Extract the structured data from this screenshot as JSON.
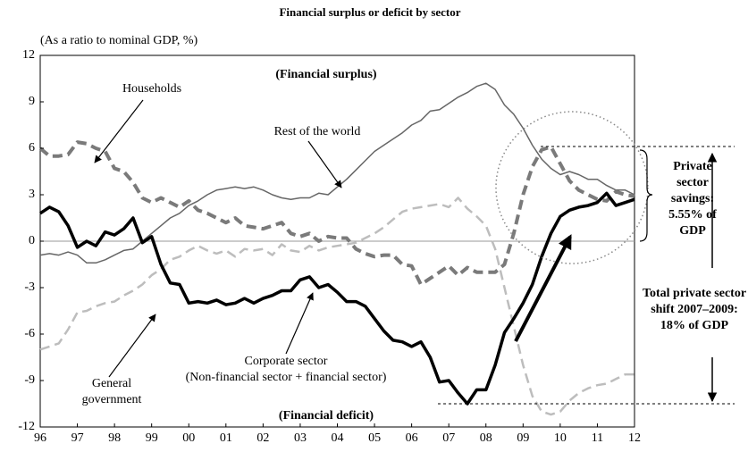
{
  "chart_data": {
    "type": "line",
    "title": "Financial surplus or deficit by sector",
    "y_axis_label": "(As a ratio to nominal GDP, %)",
    "annotations": {
      "surplus": "(Financial surplus)",
      "deficit": "(Financial deficit)",
      "corporate_detail": "(Non-financial sector + financial sector)",
      "savings": "Private sector savings: 5.55% of GDP",
      "shift": "Total private sector shift 2007–2009: 18% of GDP"
    },
    "x": [
      1996,
      1996.25,
      1996.5,
      1996.75,
      1997,
      1997.25,
      1997.5,
      1997.75,
      1998,
      1998.25,
      1998.5,
      1998.75,
      1999,
      1999.25,
      1999.5,
      1999.75,
      2000,
      2000.25,
      2000.5,
      2000.75,
      2001,
      2001.25,
      2001.5,
      2001.75,
      2002,
      2002.25,
      2002.5,
      2002.75,
      2003,
      2003.25,
      2003.5,
      2003.75,
      2004,
      2004.25,
      2004.5,
      2004.75,
      2005,
      2005.25,
      2005.5,
      2005.75,
      2006,
      2006.25,
      2006.5,
      2006.75,
      2007,
      2007.25,
      2007.5,
      2007.75,
      2008,
      2008.25,
      2008.5,
      2008.75,
      2009,
      2009.25,
      2009.5,
      2009.75,
      2010,
      2010.25,
      2010.5,
      2010.75,
      2011,
      2011.25,
      2011.5,
      2011.75,
      2012
    ],
    "xlim": [
      1996,
      2012
    ],
    "xticks": [
      {
        "value": 1996,
        "label": "96"
      },
      {
        "value": 1997,
        "label": "97"
      },
      {
        "value": 1998,
        "label": "98"
      },
      {
        "value": 1999,
        "label": "99"
      },
      {
        "value": 2000,
        "label": "00"
      },
      {
        "value": 2001,
        "label": "01"
      },
      {
        "value": 2002,
        "label": "02"
      },
      {
        "value": 2003,
        "label": "03"
      },
      {
        "value": 2004,
        "label": "04"
      },
      {
        "value": 2005,
        "label": "05"
      },
      {
        "value": 2006,
        "label": "06"
      },
      {
        "value": 2007,
        "label": "07"
      },
      {
        "value": 2008,
        "label": "08"
      },
      {
        "value": 2009,
        "label": "09"
      },
      {
        "value": 2010,
        "label": "10"
      },
      {
        "value": 2011,
        "label": "11"
      },
      {
        "value": 2012,
        "label": "12"
      }
    ],
    "ylim": [
      -12,
      12
    ],
    "yticks": [
      -12,
      -9,
      -6,
      -3,
      0,
      3,
      6,
      9,
      12
    ],
    "series": [
      {
        "name": "Households",
        "color": "#7a7a7a",
        "style": "dashed",
        "width": 4,
        "values": [
          6,
          5.5,
          5.5,
          5.6,
          6.4,
          6.3,
          6,
          5.8,
          4.7,
          4.5,
          3.8,
          2.8,
          2.5,
          2.8,
          2.5,
          2.2,
          2.6,
          2,
          1.8,
          1.5,
          1.2,
          1.5,
          1,
          0.9,
          0.8,
          1,
          1.2,
          0.5,
          0.3,
          0.5,
          0,
          0.3,
          0.2,
          0.2,
          -0.5,
          -0.8,
          -1,
          -0.9,
          -0.9,
          -1.5,
          -1.6,
          -2.8,
          -2.4,
          -2,
          -1.6,
          -2.2,
          -1.7,
          -2,
          -2,
          -2,
          -1.5,
          0.5,
          3,
          4.8,
          5.9,
          6.1,
          5,
          3.9,
          3.3,
          3,
          2.7,
          2.6,
          3.2,
          3,
          2.9
        ]
      },
      {
        "name": "Rest of the world",
        "color": "#666666",
        "style": "solid",
        "width": 1.5,
        "values": [
          -0.9,
          -0.8,
          -0.9,
          -0.7,
          -0.9,
          -1.4,
          -1.4,
          -1.2,
          -0.9,
          -0.6,
          -0.5,
          0,
          0.5,
          1,
          1.5,
          1.8,
          2.3,
          2.6,
          3,
          3.3,
          3.4,
          3.5,
          3.4,
          3.5,
          3.3,
          3,
          2.8,
          2.7,
          2.8,
          2.8,
          3.1,
          3,
          3.5,
          4,
          4.6,
          5.2,
          5.8,
          6.2,
          6.6,
          7,
          7.5,
          7.8,
          8.4,
          8.5,
          8.9,
          9.3,
          9.6,
          10,
          10.2,
          9.8,
          8.8,
          8.2,
          7.3,
          6.2,
          5.3,
          4.7,
          4.3,
          4.5,
          4.3,
          4,
          4,
          3.6,
          3.3,
          3.3,
          3
        ]
      },
      {
        "name": "General government",
        "color": "#bdbdbd",
        "style": "dashed",
        "width": 2.5,
        "values": [
          -7,
          -6.8,
          -6.6,
          -5.7,
          -4.6,
          -4.5,
          -4.2,
          -4,
          -3.9,
          -3.5,
          -3.2,
          -2.8,
          -2.2,
          -1.8,
          -1.2,
          -1,
          -0.6,
          -0.3,
          -0.6,
          -0.8,
          -0.6,
          -1,
          -0.5,
          -0.6,
          -0.5,
          -0.9,
          -0.2,
          -0.6,
          -0.7,
          -0.3,
          -0.6,
          -0.4,
          -0.3,
          -0.2,
          -0.1,
          0.2,
          0.5,
          0.9,
          1.4,
          1.9,
          2.1,
          2.2,
          2.3,
          2.4,
          2.2,
          2.8,
          2.1,
          1.6,
          1,
          -0.5,
          -3,
          -5.5,
          -8,
          -10,
          -11,
          -11.2,
          -11,
          -10.3,
          -9.8,
          -9.5,
          -9.3,
          -9.2,
          -8.9,
          -8.6,
          -8.6
        ]
      },
      {
        "name": "Corporate sector",
        "color": "#000000",
        "style": "solid",
        "width": 3.5,
        "values": [
          1.8,
          2.2,
          1.9,
          1,
          -0.4,
          0,
          -0.3,
          0.6,
          0.4,
          0.8,
          1.5,
          -0.1,
          0.3,
          -1.5,
          -2.7,
          -2.8,
          -4,
          -3.9,
          -4,
          -3.8,
          -4.1,
          -4,
          -3.7,
          -4,
          -3.7,
          -3.5,
          -3.2,
          -3.2,
          -2.5,
          -2.3,
          -3,
          -2.8,
          -3.3,
          -3.9,
          -3.9,
          -4.2,
          -5,
          -5.8,
          -6.4,
          -6.5,
          -6.8,
          -6.5,
          -7.5,
          -9.1,
          -9,
          -9.8,
          -10.5,
          -9.6,
          -9.6,
          -8,
          -5.9,
          -5,
          -4,
          -2.8,
          -1,
          0.5,
          1.6,
          2,
          2.2,
          2.3,
          2.5,
          3.1,
          2.3,
          2.5,
          2.7
        ]
      }
    ],
    "zero_line": true
  }
}
